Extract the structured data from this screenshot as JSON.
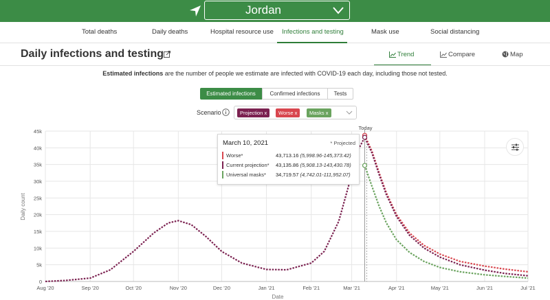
{
  "header": {
    "location": "Jordan",
    "icons": {
      "location": "location-arrow-icon",
      "dropdown": "chevron-down-icon"
    }
  },
  "nav": {
    "tabs": [
      {
        "label": "Total deaths",
        "active": false
      },
      {
        "label": "Daily deaths",
        "active": false
      },
      {
        "label": "Hospital resource use",
        "active": false
      },
      {
        "label": "Infections and testing",
        "active": true
      },
      {
        "label": "Mask use",
        "active": false
      },
      {
        "label": "Social distancing",
        "active": false
      }
    ]
  },
  "page": {
    "title": "Daily infections and testing",
    "views": [
      {
        "label": "Trend",
        "icon": "line-chart-icon",
        "active": true
      },
      {
        "label": "Compare",
        "icon": "bar-chart-icon",
        "active": false
      },
      {
        "label": "Map",
        "icon": "globe-icon",
        "active": false
      }
    ],
    "description_bold": "Estimated infections",
    "description_rest": " are the number of people we estimate are infected with COVID-19 each day, including those not tested."
  },
  "metric_toggle": {
    "options": [
      "Estimated infections",
      "Confirmed infections",
      "Tests"
    ],
    "selected": "Estimated infections"
  },
  "scenario": {
    "label": "Scenario",
    "chips": [
      {
        "label": "Projection",
        "color": "#7b2150"
      },
      {
        "label": "Worse",
        "color": "#d8464e"
      },
      {
        "label": "Masks",
        "color": "#6aa35e"
      }
    ]
  },
  "tooltip": {
    "date": "March 10, 2021",
    "note": "* Projected",
    "rows": [
      {
        "name": "Worse*",
        "value": "43,713.16",
        "ci": "(5,998.96-145,373.42)",
        "color": "#d8464e"
      },
      {
        "name": "Current projection*",
        "value": "43,135.86",
        "ci": "(5,908.13-143,430.78)",
        "color": "#7b2150"
      },
      {
        "name": "Universal masks*",
        "value": "34,719.57",
        "ci": "(4,742.01-111,952.07)",
        "color": "#6aa35e"
      }
    ]
  },
  "colors": {
    "accent": "#3c8c46",
    "projection": "#7b2150",
    "worse": "#d8464e",
    "masks": "#6aa35e"
  },
  "chart_data": {
    "type": "line",
    "ylabel": "Daily count",
    "xlabel": "Date",
    "today_label": "Today",
    "ylim": [
      0,
      45000
    ],
    "y_ticks": [
      0,
      5000,
      10000,
      15000,
      20000,
      25000,
      30000,
      35000,
      40000,
      45000
    ],
    "y_tick_labels": [
      "0",
      "5k",
      "10k",
      "15k",
      "20k",
      "25k",
      "30k",
      "35k",
      "40k",
      "45k"
    ],
    "x_tick_labels": [
      "Aug '20",
      "Sep '20",
      "Oct '20",
      "Nov '20",
      "Dec '20",
      "Jan '21",
      "Feb '21",
      "Mar '21",
      "Apr '21",
      "May '21",
      "Jun '21",
      "Jul '21"
    ],
    "x_tick_dates": [
      "2020-08-01",
      "2020-09-01",
      "2020-10-01",
      "2020-11-01",
      "2020-12-01",
      "2021-01-01",
      "2021-02-01",
      "2021-03-01",
      "2021-04-01",
      "2021-05-01",
      "2021-06-01",
      "2021-07-01"
    ],
    "today": "2021-03-10",
    "grid": true,
    "series": [
      {
        "name": "Worse",
        "color": "#d8464e",
        "x": [
          "2021-03-10",
          "2021-03-15",
          "2021-03-20",
          "2021-03-25",
          "2021-04-01",
          "2021-04-10",
          "2021-04-20",
          "2021-05-01",
          "2021-05-15",
          "2021-06-01",
          "2021-06-15",
          "2021-07-01"
        ],
        "values": [
          43713,
          39000,
          32500,
          26500,
          20000,
          14500,
          10800,
          8200,
          6000,
          4600,
          3700,
          2900
        ]
      },
      {
        "name": "Current projection",
        "color": "#7b2150",
        "x": [
          "2020-08-01",
          "2020-08-15",
          "2020-09-01",
          "2020-09-15",
          "2020-10-01",
          "2020-10-15",
          "2020-10-25",
          "2020-11-01",
          "2020-11-10",
          "2020-11-20",
          "2020-12-01",
          "2020-12-15",
          "2021-01-01",
          "2021-01-15",
          "2021-02-01",
          "2021-02-10",
          "2021-02-20",
          "2021-03-01",
          "2021-03-05",
          "2021-03-10",
          "2021-03-15",
          "2021-03-20",
          "2021-03-25",
          "2021-04-01",
          "2021-04-10",
          "2021-04-20",
          "2021-05-01",
          "2021-05-15",
          "2021-06-01",
          "2021-06-15",
          "2021-07-01"
        ],
        "values": [
          0,
          300,
          1000,
          3500,
          9000,
          14500,
          17500,
          18200,
          17000,
          13500,
          9000,
          5500,
          3600,
          3500,
          5500,
          9000,
          18000,
          32000,
          39000,
          43136,
          38500,
          32000,
          26000,
          19500,
          13800,
          10000,
          7300,
          5000,
          3400,
          2400,
          1700
        ]
      },
      {
        "name": "Universal masks",
        "color": "#6aa35e",
        "x": [
          "2021-03-10",
          "2021-03-15",
          "2021-03-20",
          "2021-03-25",
          "2021-04-01",
          "2021-04-10",
          "2021-04-20",
          "2021-05-01",
          "2021-05-15",
          "2021-06-01",
          "2021-06-15",
          "2021-07-01"
        ],
        "values": [
          34720,
          28500,
          22500,
          17500,
          12500,
          8700,
          6000,
          4200,
          2900,
          2000,
          1500,
          1000
        ]
      }
    ]
  }
}
